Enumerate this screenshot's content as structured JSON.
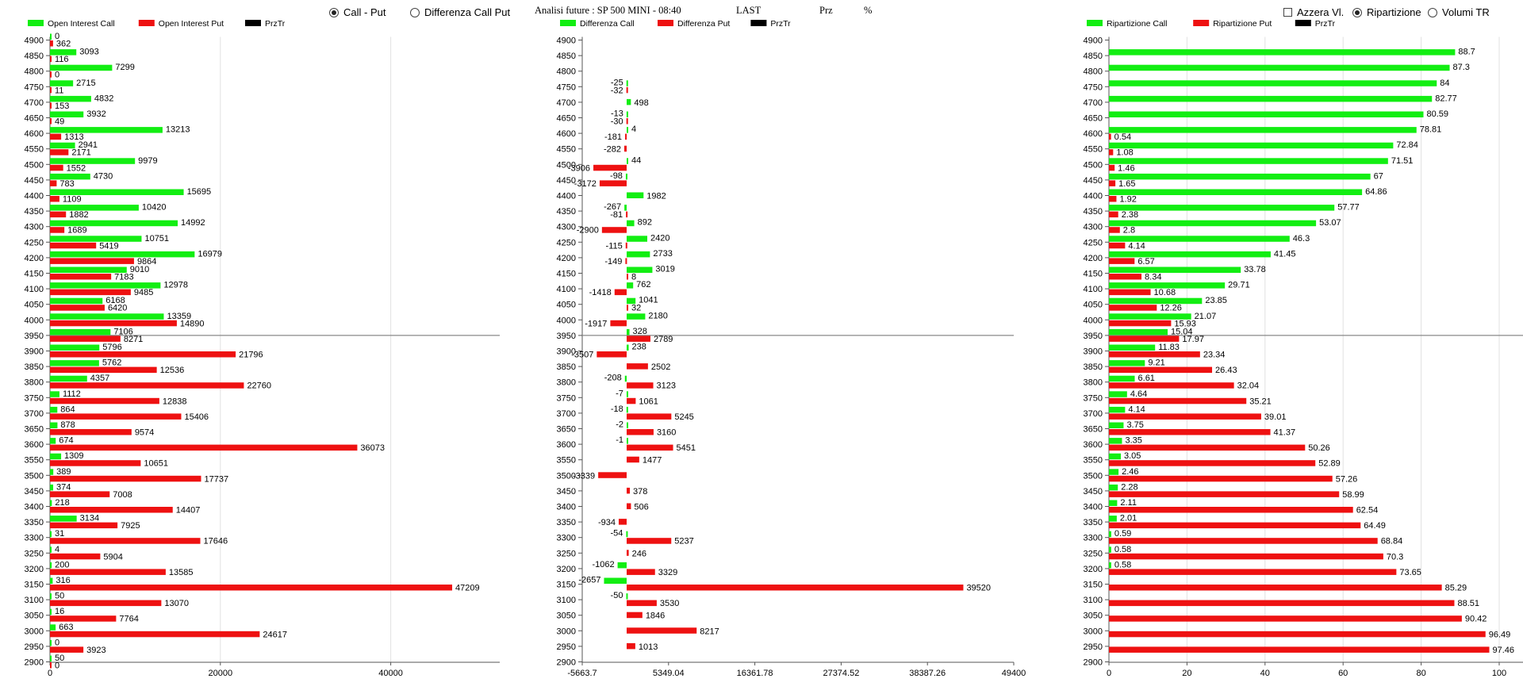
{
  "header": {
    "mode_call_put": "Call - Put",
    "mode_diff": "Differenza Call Put",
    "mode_selected": "call_put",
    "info_label": "Analisi future : SP 500 MINI - 08:40",
    "last_label": "LAST",
    "prz_label": "Prz",
    "pct_label": "%",
    "azzera": "Azzera Vl.",
    "ripartizione": "Ripartizione",
    "volumi": "Volumi TR",
    "right_selected": "ripartizione"
  },
  "colors": {
    "call": "#12ee12",
    "put": "#ee1111",
    "prz": "#000000",
    "price_line": "#888888"
  },
  "chart_data": [
    {
      "type": "bar",
      "orientation": "horizontal",
      "legend": [
        "Open Interest Call",
        "Open Interest Put",
        "PrzTr"
      ],
      "categories": [
        "4900",
        "4850",
        "4800",
        "4750",
        "4700",
        "4650",
        "4600",
        "4550",
        "4500",
        "4450",
        "4400",
        "4350",
        "4300",
        "4250",
        "4200",
        "4150",
        "4100",
        "4050",
        "4000",
        "3950",
        "3900",
        "3850",
        "3800",
        "3750",
        "3700",
        "3650",
        "3600",
        "3550",
        "3500",
        "3450",
        "3400",
        "3350",
        "3300",
        "3250",
        "3200",
        "3150",
        "3100",
        "3050",
        "3000",
        "2950",
        "2900"
      ],
      "series": [
        {
          "name": "Open Interest Call",
          "values": [
            0,
            3093,
            7299,
            2715,
            4832,
            3932,
            13213,
            2941,
            9979,
            4730,
            15695,
            10420,
            14992,
            10751,
            16979,
            9010,
            12978,
            6168,
            13359,
            7106,
            5796,
            5762,
            4357,
            1112,
            864,
            878,
            674,
            1309,
            389,
            374,
            218,
            3134,
            31,
            4,
            200,
            316,
            50,
            16,
            663,
            0,
            50
          ]
        },
        {
          "name": "Open Interest Put",
          "values": [
            362,
            116,
            0,
            11,
            153,
            49,
            1313,
            2171,
            1552,
            783,
            1109,
            1882,
            1689,
            5419,
            9864,
            7183,
            9485,
            6420,
            14890,
            8271,
            21796,
            12536,
            22760,
            12838,
            15406,
            9574,
            36073,
            10651,
            17737,
            7008,
            14407,
            7925,
            17646,
            5904,
            13585,
            47209,
            13070,
            7764,
            24617,
            3923,
            0
          ]
        }
      ],
      "xlim": [
        0,
        52000
      ],
      "xticks": [
        "0",
        "20000",
        "40000"
      ],
      "price_level": "3950"
    },
    {
      "type": "bar",
      "orientation": "horizontal",
      "legend": [
        "Differenza Call",
        "Differenza Put",
        "PrzTr"
      ],
      "categories": [
        "4900",
        "4850",
        "4800",
        "4750",
        "4700",
        "4650",
        "4600",
        "4550",
        "4500",
        "4450",
        "4400",
        "4350",
        "4300",
        "4250",
        "4200",
        "4150",
        "4100",
        "4050",
        "4000",
        "3950",
        "3900",
        "3850",
        "3800",
        "3750",
        "3700",
        "3650",
        "3600",
        "3550",
        "3500",
        "3450",
        "3400",
        "3350",
        "3300",
        "3250",
        "3200",
        "3150",
        "3100",
        "3050",
        "3000",
        "2950",
        "2900"
      ],
      "series": [
        {
          "name": "Differenza Call",
          "values": [
            null,
            null,
            null,
            -25,
            498,
            -13,
            4,
            null,
            44,
            -98,
            1982,
            -267,
            892,
            2420,
            2733,
            3019,
            762,
            1041,
            2180,
            328,
            238,
            null,
            -208,
            -7,
            -18,
            -2,
            -1,
            null,
            null,
            null,
            null,
            null,
            -54,
            null,
            -1062,
            -2657,
            -50,
            null,
            null,
            null,
            null
          ]
        },
        {
          "name": "Differenza Put",
          "values": [
            null,
            null,
            null,
            -32,
            null,
            -30,
            -181,
            -282,
            -3906,
            -3172,
            null,
            -81,
            -2900,
            -115,
            -149,
            8,
            -1418,
            32,
            -1917,
            2789,
            -3507,
            2502,
            3123,
            1061,
            5245,
            3160,
            5451,
            1477,
            -3339,
            378,
            506,
            -934,
            5237,
            246,
            3329,
            39520,
            3530,
            1846,
            8217,
            1013,
            null
          ]
        }
      ],
      "xlim": [
        -5663.7,
        49400
      ],
      "xticks": [
        "-5663.7",
        "5349.04",
        "16361.78",
        "27374.52",
        "38387.26",
        "49400"
      ],
      "price_level": "3950"
    },
    {
      "type": "bar",
      "orientation": "horizontal",
      "legend": [
        "Ripartizione Call",
        "Ripartizione Put",
        "PrzTr"
      ],
      "categories": [
        "4900",
        "4850",
        "4800",
        "4750",
        "4700",
        "4650",
        "4600",
        "4550",
        "4500",
        "4450",
        "4400",
        "4350",
        "4300",
        "4250",
        "4200",
        "4150",
        "4100",
        "4050",
        "4000",
        "3950",
        "3900",
        "3850",
        "3800",
        "3750",
        "3700",
        "3650",
        "3600",
        "3550",
        "3500",
        "3450",
        "3400",
        "3350",
        "3300",
        "3250",
        "3200",
        "3150",
        "3100",
        "3050",
        "3000",
        "2950",
        "2900"
      ],
      "series": [
        {
          "name": "Ripartizione Call",
          "values": [
            null,
            88.7,
            87.3,
            84,
            82.77,
            80.59,
            78.81,
            72.84,
            71.51,
            67,
            64.86,
            57.77,
            53.07,
            46.3,
            41.45,
            33.78,
            29.71,
            23.85,
            21.07,
            15.04,
            11.83,
            9.21,
            6.61,
            4.64,
            4.14,
            3.75,
            3.35,
            3.05,
            2.46,
            2.28,
            2.11,
            2.01,
            0.59,
            0.58,
            0.58,
            null,
            null,
            null,
            null,
            null,
            null
          ]
        },
        {
          "name": "Ripartizione Put",
          "values": [
            null,
            null,
            null,
            null,
            null,
            null,
            0.54,
            1.08,
            1.46,
            1.65,
            1.92,
            2.38,
            2.8,
            4.14,
            6.57,
            8.34,
            10.68,
            12.26,
            15.93,
            17.97,
            23.34,
            26.43,
            32.04,
            35.21,
            39.01,
            41.37,
            50.26,
            52.89,
            57.26,
            58.99,
            62.54,
            64.49,
            68.84,
            70.3,
            73.65,
            85.29,
            88.51,
            90.42,
            96.49,
            97.46,
            null
          ]
        }
      ],
      "xlim": [
        0,
        100
      ],
      "xticks": [
        "0",
        "20",
        "40",
        "60",
        "80",
        "100"
      ],
      "price_level": "3950"
    }
  ]
}
